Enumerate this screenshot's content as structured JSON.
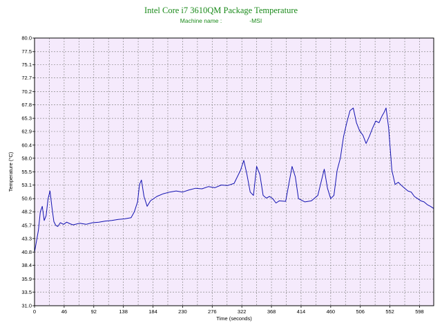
{
  "header": {
    "title": "Intel Core i7 3610QM Package Temperature",
    "machine_label": "Machine name :",
    "machine_value": "-MSI"
  },
  "chart_data": {
    "type": "line",
    "title": "Intel Core i7 3610QM Package Temperature",
    "xlabel": "Time (seconds)",
    "ylabel": "Temperature (°C)",
    "xlim": [
      0,
      620
    ],
    "ylim": [
      31.0,
      80.0
    ],
    "x_ticks": [
      "0",
      "46",
      "92",
      "138",
      "184",
      "230",
      "276",
      "322",
      "368",
      "414",
      "460",
      "506",
      "552",
      "598"
    ],
    "y_ticks": [
      "31.0",
      "33.5",
      "35.9",
      "38.4",
      "40.8",
      "43.3",
      "45.7",
      "48.2",
      "50.6",
      "53.1",
      "55.5",
      "58.0",
      "60.4",
      "62.9",
      "65.3",
      "67.8",
      "70.2",
      "72.7",
      "75.1",
      "77.5",
      "80.0"
    ],
    "grid": true,
    "colors": {
      "background": "#f5eafc",
      "grid": "#8a8a8a",
      "line": "#1010b0",
      "title": "#1a8a1a"
    },
    "series": [
      {
        "x": [
          0,
          3,
          6,
          9,
          12,
          15,
          18,
          21,
          24,
          27,
          30,
          33,
          36,
          40,
          45,
          50,
          55,
          60,
          70,
          80,
          90,
          100,
          110,
          120,
          130,
          140,
          150,
          155,
          160,
          163,
          166,
          170,
          175,
          180,
          190,
          200,
          210,
          220,
          230,
          240,
          250,
          260,
          270,
          280,
          290,
          300,
          310,
          320,
          325,
          330,
          335,
          340,
          345,
          350,
          355,
          360,
          365,
          370,
          375,
          380,
          390,
          400,
          405,
          410,
          420,
          430,
          440,
          450,
          455,
          460,
          465,
          470,
          475,
          480,
          485,
          490,
          495,
          500,
          505,
          510,
          515,
          520,
          525,
          530,
          535,
          540,
          543,
          546,
          550,
          555,
          560,
          565,
          570,
          575,
          580,
          585,
          590,
          595,
          600,
          605,
          610,
          615,
          620
        ],
        "y": [
          40.8,
          42.8,
          44.8,
          48.2,
          49.2,
          46.6,
          47.5,
          50.6,
          52.0,
          49.0,
          46.4,
          45.7,
          45.5,
          46.2,
          45.9,
          46.3,
          46.0,
          45.8,
          46.1,
          45.9,
          46.2,
          46.3,
          46.5,
          46.6,
          46.8,
          46.9,
          47.1,
          48.2,
          50.0,
          53.2,
          54.0,
          51.0,
          49.2,
          50.2,
          51.0,
          51.5,
          51.8,
          52.0,
          51.8,
          52.2,
          52.5,
          52.4,
          52.8,
          52.6,
          53.1,
          53.0,
          53.4,
          55.8,
          57.6,
          55.0,
          51.8,
          51.2,
          56.5,
          55.0,
          51.2,
          50.7,
          51.0,
          50.6,
          49.8,
          50.2,
          50.1,
          56.5,
          54.6,
          50.6,
          50.0,
          50.2,
          51.2,
          56.0,
          52.5,
          50.6,
          51.2,
          55.8,
          58.0,
          62.0,
          64.5,
          66.7,
          67.2,
          64.5,
          63.0,
          62.2,
          60.7,
          62.0,
          63.5,
          64.8,
          64.5,
          65.8,
          66.4,
          67.2,
          63.6,
          55.8,
          53.2,
          53.6,
          53.0,
          52.5,
          52.0,
          51.8,
          51.0,
          50.6,
          50.2,
          50.0,
          49.5,
          49.2,
          48.8
        ]
      }
    ]
  }
}
